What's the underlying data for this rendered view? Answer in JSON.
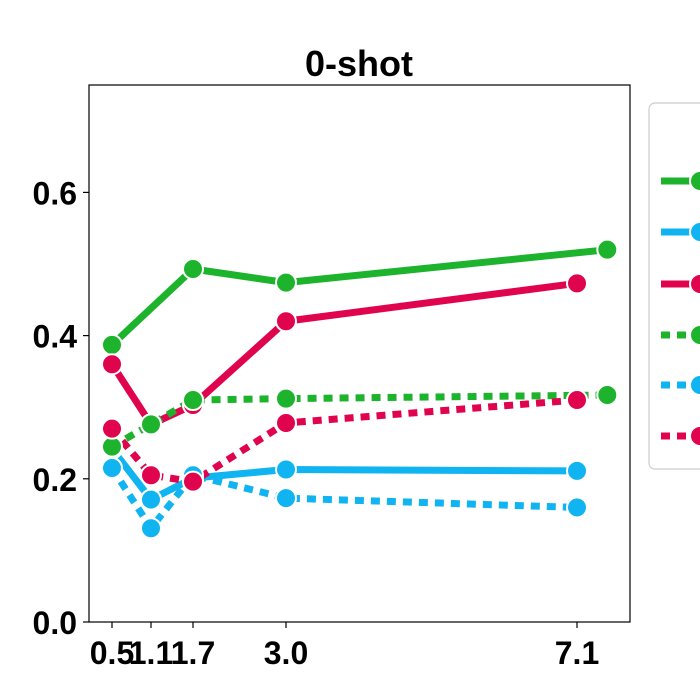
{
  "chart_data": {
    "type": "line",
    "title": "0-shot",
    "xlabel": "",
    "ylabel": "",
    "x_ticks": [
      0.5,
      1.1,
      1.7,
      3.0,
      7.1
    ],
    "x_tick_labels": [
      "0.5",
      "1.1",
      "1.7",
      "3.0",
      "7.1"
    ],
    "y_ticks": [
      0.0,
      0.2,
      0.4,
      0.6
    ],
    "y_tick_labels": [
      "0.0",
      "0.2",
      "0.4",
      "0.6"
    ],
    "xlim": [
      0.2,
      7.8
    ],
    "ylim": [
      0.0,
      0.75
    ],
    "grid": false,
    "legend_placement": "right, outside (cropped)",
    "series": [
      {
        "color": "#1db32c",
        "style": "solid",
        "points": [
          [
            0.5,
            0.387
          ],
          [
            1.7,
            0.493
          ],
          [
            3.0,
            0.474
          ],
          [
            7.5,
            0.52
          ]
        ]
      },
      {
        "color": "#10b4f0",
        "style": "solid",
        "points": [
          [
            0.5,
            0.242
          ],
          [
            1.1,
            0.171
          ],
          [
            1.7,
            0.201
          ],
          [
            3.0,
            0.213
          ],
          [
            7.1,
            0.211
          ]
        ]
      },
      {
        "color": "#e0034d",
        "style": "solid",
        "points": [
          [
            0.5,
            0.36
          ],
          [
            1.1,
            0.276
          ],
          [
            1.7,
            0.303
          ],
          [
            3.0,
            0.42
          ],
          [
            7.1,
            0.473
          ]
        ]
      },
      {
        "color": "#1db32c",
        "style": "dotted",
        "points": [
          [
            0.5,
            0.245
          ],
          [
            1.1,
            0.276
          ],
          [
            1.7,
            0.31
          ],
          [
            3.0,
            0.312
          ],
          [
            7.5,
            0.317
          ]
        ]
      },
      {
        "color": "#10b4f0",
        "style": "dotted",
        "points": [
          [
            0.5,
            0.215
          ],
          [
            1.1,
            0.131
          ],
          [
            1.7,
            0.205
          ],
          [
            3.0,
            0.173
          ],
          [
            7.1,
            0.16
          ]
        ]
      },
      {
        "color": "#e0034d",
        "style": "dotted",
        "points": [
          [
            0.5,
            0.27
          ],
          [
            1.1,
            0.205
          ],
          [
            1.7,
            0.196
          ],
          [
            3.0,
            0.278
          ],
          [
            7.1,
            0.31
          ]
        ]
      }
    ]
  }
}
